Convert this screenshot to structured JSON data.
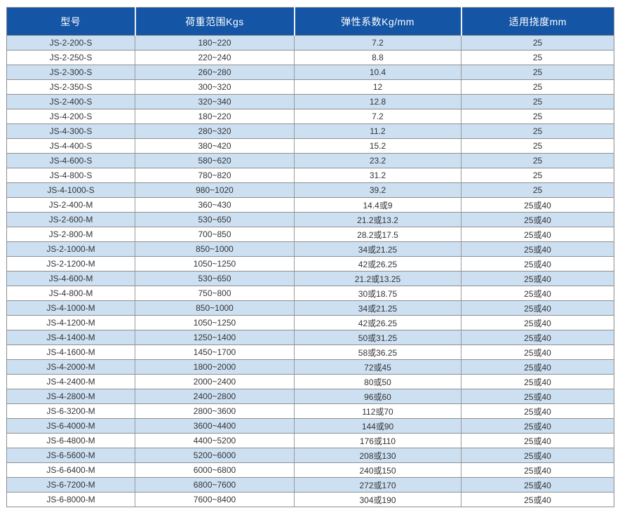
{
  "colors": {
    "header_bg": "#1455a5",
    "header_text": "#ffffff",
    "row_alt_bg": "#cde0f2",
    "row_bg": "#ffffff",
    "grid_line": "#8f8f8f",
    "body_text": "#333333"
  },
  "chart_data": {
    "type": "table",
    "columns": [
      "型号",
      "荷重范围Kgs",
      "弹性系数Kg/mm",
      "适用挠度mm"
    ],
    "rows": [
      [
        "JS-2-200-S",
        "180~220",
        "7.2",
        "25"
      ],
      [
        "JS-2-250-S",
        "220~240",
        "8.8",
        "25"
      ],
      [
        "JS-2-300-S",
        "260~280",
        "10.4",
        "25"
      ],
      [
        "JS-2-350-S",
        "300~320",
        "12",
        "25"
      ],
      [
        "JS-2-400-S",
        "320~340",
        "12.8",
        "25"
      ],
      [
        "JS-4-200-S",
        "180~220",
        "7.2",
        "25"
      ],
      [
        "JS-4-300-S",
        "280~320",
        "11.2",
        "25"
      ],
      [
        "JS-4-400-S",
        "380~420",
        "15.2",
        "25"
      ],
      [
        "JS-4-600-S",
        "580~620",
        "23.2",
        "25"
      ],
      [
        "JS-4-800-S",
        "780~820",
        "31.2",
        "25"
      ],
      [
        "JS-4-1000-S",
        "980~1020",
        "39.2",
        "25"
      ],
      [
        "JS-2-400-M",
        "360~430",
        "14.4或9",
        "25或40"
      ],
      [
        "JS-2-600-M",
        "530~650",
        "21.2或13.2",
        "25或40"
      ],
      [
        "JS-2-800-M",
        "700~850",
        "28.2或17.5",
        "25或40"
      ],
      [
        "JS-2-1000-M",
        "850~1000",
        "34或21.25",
        "25或40"
      ],
      [
        "JS-2-1200-M",
        "1050~1250",
        "42或26.25",
        "25或40"
      ],
      [
        "JS-4-600-M",
        "530~650",
        "21.2或13.25",
        "25或40"
      ],
      [
        "JS-4-800-M",
        "750~800",
        "30或18.75",
        "25或40"
      ],
      [
        "JS-4-1000-M",
        "850~1000",
        "34或21.25",
        "25或40"
      ],
      [
        "JS-4-1200-M",
        "1050~1250",
        "42或26.25",
        "25或40"
      ],
      [
        "JS-4-1400-M",
        "1250~1400",
        "50或31.25",
        "25或40"
      ],
      [
        "JS-4-1600-M",
        "1450~1700",
        "58或36.25",
        "25或40"
      ],
      [
        "JS-4-2000-M",
        "1800~2000",
        "72或45",
        "25或40"
      ],
      [
        "JS-4-2400-M",
        "2000~2400",
        "80或50",
        "25或40"
      ],
      [
        "JS-4-2800-M",
        "2400~2800",
        "96或60",
        "25或40"
      ],
      [
        "JS-6-3200-M",
        "2800~3600",
        "112或70",
        "25或40"
      ],
      [
        "JS-6-4000-M",
        "3600~4400",
        "144或90",
        "25或40"
      ],
      [
        "JS-6-4800-M",
        "4400~5200",
        "176或110",
        "25或40"
      ],
      [
        "JS-6-5600-M",
        "5200~6000",
        "208或130",
        "25或40"
      ],
      [
        "JS-6-6400-M",
        "6000~6800",
        "240或150",
        "25或40"
      ],
      [
        "JS-6-7200-M",
        "6800~7600",
        "272或170",
        "25或40"
      ],
      [
        "JS-6-8000-M",
        "7600~8400",
        "304或190",
        "25或40"
      ]
    ],
    "layout": {
      "zebra_start": "first data row shaded",
      "alignment": "center",
      "grid": true
    }
  }
}
